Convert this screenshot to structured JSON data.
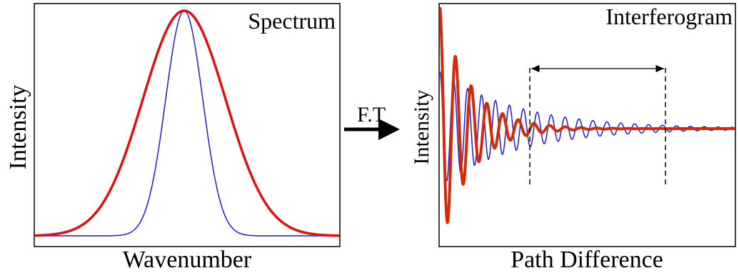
{
  "left_panel": {
    "title": "Spectrum",
    "y_label": "Intensity",
    "x_label": "Wavenumber"
  },
  "arrow": {
    "label": "F.T"
  },
  "right_panel": {
    "title": "Interferogram",
    "y_label": "Intensity",
    "x_label": "Path Difference"
  }
}
